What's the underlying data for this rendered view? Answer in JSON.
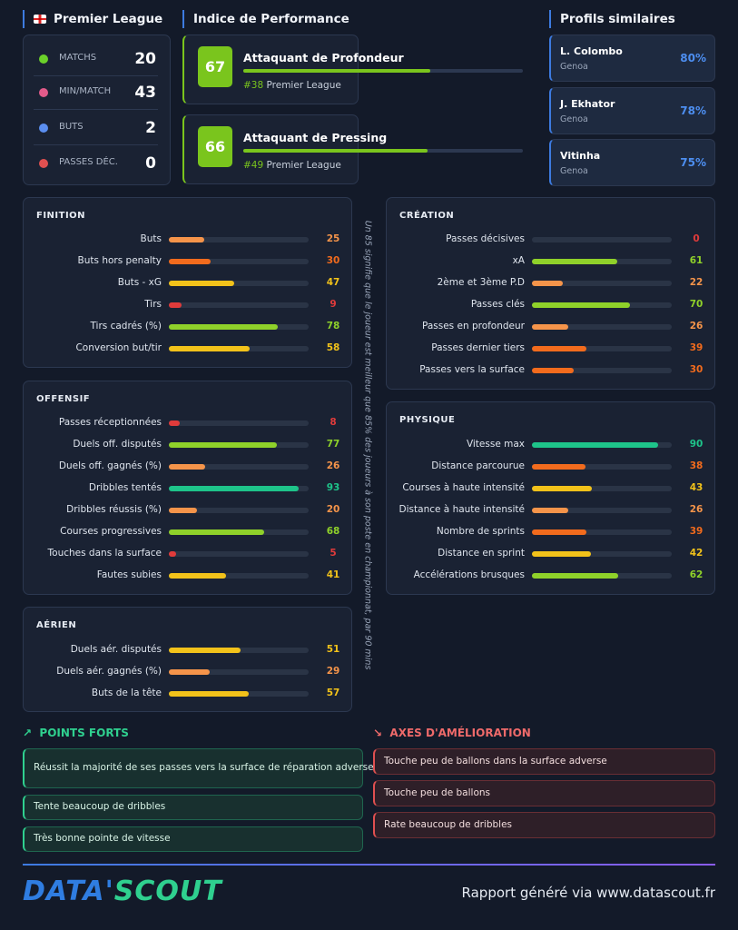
{
  "header": {
    "league": "Premier League",
    "performance_title": "Indice de Performance",
    "similar_title": "Profils similaires"
  },
  "stats": [
    {
      "label": "MATCHS",
      "value": 20
    },
    {
      "label": "MIN/MATCH",
      "value": 43
    },
    {
      "label": "BUTS",
      "value": 2
    },
    {
      "label": "PASSES DÉC.",
      "value": 0
    }
  ],
  "performance": [
    {
      "score": 67,
      "title": "Attaquant de Profondeur",
      "rank": "#38",
      "league": "Premier League"
    },
    {
      "score": 66,
      "title": "Attaquant de Pressing",
      "rank": "#49",
      "league": "Premier League"
    }
  ],
  "similar": [
    {
      "name": "L. Colombo",
      "club": "Genoa",
      "similarity": "80%"
    },
    {
      "name": "J. Ekhator",
      "club": "Genoa",
      "similarity": "78%"
    },
    {
      "name": "Vitinha",
      "club": "Genoa",
      "similarity": "75%"
    }
  ],
  "sections": [
    {
      "title": "FINITION",
      "metrics": [
        {
          "label": "Buts",
          "value": 25
        },
        {
          "label": "Buts hors penalty",
          "value": 30
        },
        {
          "label": "Buts - xG",
          "value": 47
        },
        {
          "label": "Tirs",
          "value": 9
        },
        {
          "label": "Tirs cadrés (%)",
          "value": 78
        },
        {
          "label": "Conversion but/tir",
          "value": 58
        }
      ]
    },
    {
      "title": "OFFENSIF",
      "metrics": [
        {
          "label": "Passes réceptionnées",
          "value": 8
        },
        {
          "label": "Duels off. disputés",
          "value": 77
        },
        {
          "label": "Duels off. gagnés (%)",
          "value": 26
        },
        {
          "label": "Dribbles tentés",
          "value": 93
        },
        {
          "label": "Dribbles réussis (%)",
          "value": 20
        },
        {
          "label": "Courses progressives",
          "value": 68
        },
        {
          "label": "Touches dans la surface",
          "value": 5
        },
        {
          "label": "Fautes subies",
          "value": 41
        }
      ]
    },
    {
      "title": "AÉRIEN",
      "metrics": [
        {
          "label": "Duels aér. disputés",
          "value": 51
        },
        {
          "label": "Duels aér. gagnés (%)",
          "value": 29
        },
        {
          "label": "Buts de la tête",
          "value": 57
        }
      ]
    },
    {
      "title": "CRÉATION",
      "metrics": [
        {
          "label": "Passes décisives",
          "value": 0
        },
        {
          "label": "xA",
          "value": 61
        },
        {
          "label": "2ème et 3ème P.D",
          "value": 22
        },
        {
          "label": "Passes clés",
          "value": 70
        },
        {
          "label": "Passes en profondeur",
          "value": 26
        },
        {
          "label": "Passes dernier tiers",
          "value": 39
        },
        {
          "label": "Passes vers la surface",
          "value": 30
        }
      ]
    },
    {
      "title": "PHYSIQUE",
      "metrics": [
        {
          "label": "Vitesse max",
          "value": 90
        },
        {
          "label": "Distance parcourue",
          "value": 38
        },
        {
          "label": "Courses à haute intensité",
          "value": 43
        },
        {
          "label": "Distance à haute intensité",
          "value": 26
        },
        {
          "label": "Nombre de sprints",
          "value": 39
        },
        {
          "label": "Distance en sprint",
          "value": 42
        },
        {
          "label": "Accélérations brusques",
          "value": 62
        }
      ]
    }
  ],
  "note": "Un 85 signifie que le joueur est meilleur que 85% des joueurs à son poste en championnat, par 90 mins",
  "strengths": {
    "title": "POINTS FORTS",
    "items": [
      "Réussit la majorité de ses passes vers la surface de réparation adverse",
      "Tente beaucoup de dribbles",
      "Très bonne pointe de vitesse"
    ]
  },
  "improvements": {
    "title": "AXES D'AMÉLIORATION",
    "items": [
      "Touche peu de ballons dans la surface adverse",
      "Touche peu de ballons",
      "Rate beaucoup de dribbles"
    ]
  },
  "footer": {
    "logo_left": "DATA'",
    "logo_right": "SCOUT",
    "text": "Rapport généré via www.datascout.fr"
  }
}
